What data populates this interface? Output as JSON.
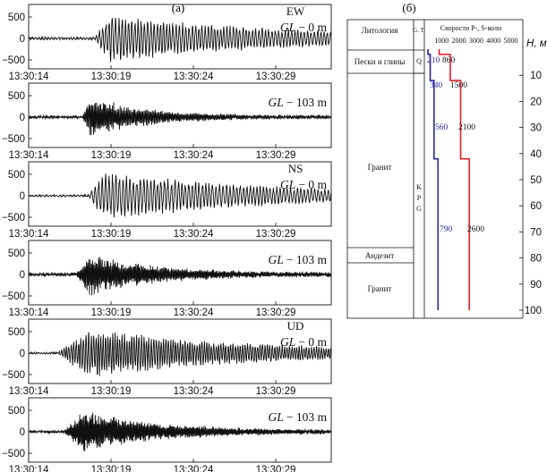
{
  "panels": {
    "left_label": "(a)",
    "right_label": "(б)"
  },
  "seismograms": {
    "y_ticks": [
      "500",
      "0",
      "−500"
    ],
    "time_ticks": [
      "13:30:14",
      "13:30:19",
      "13:30:24",
      "13:30:29"
    ],
    "components": [
      "EW",
      "",
      "NS",
      "",
      "UD",
      ""
    ],
    "levels": [
      "GL − 0 m",
      "GL − 103 m",
      "GL − 0 m",
      "GL − 103 m",
      "GL − 0 m",
      "GL − 103 m"
    ]
  },
  "profile": {
    "col_lithology": "Литология",
    "col_gt": "G. T.",
    "col_velocity": "Скорости P-, S-волн",
    "vel_ticks": [
      "1000",
      "2000",
      "3000",
      "4000",
      "5000"
    ],
    "depth_label": "H, м",
    "depth_ticks": [
      "10",
      "20",
      "30",
      "40",
      "50",
      "60",
      "70",
      "80",
      "90",
      "100"
    ],
    "layers": [
      "Пески и глины",
      "Гранит",
      "Андезит",
      "Гранит"
    ],
    "gt_labels": [
      "Q",
      "K P G"
    ],
    "s_wave_labels": [
      "210",
      "340",
      "560",
      "790"
    ],
    "p_wave_labels": [
      "860",
      "1500",
      "2100",
      "2600"
    ],
    "colors": {
      "p_wave": "#e0202a",
      "s_wave": "#2a2aa0"
    }
  },
  "chart_data": {
    "type": "line",
    "title": "Скорости P-, S-волн",
    "xlabel": "",
    "ylabel": "H, м",
    "xlim": [
      0,
      5500
    ],
    "ylim": [
      0,
      103
    ],
    "series": [
      {
        "name": "",
        "segments": [
          [
            0,
            2,
            860
          ],
          [
            2,
            12,
            1500
          ],
          [
            12,
            42,
            2100
          ],
          [
            42,
            100,
            2600
          ]
        ]
      },
      {
        "name": "",
        "segments": [
          [
            0,
            2,
            210
          ],
          [
            2,
            12,
            340
          ],
          [
            12,
            42,
            560
          ],
          [
            42,
            100,
            790
          ]
        ]
      }
    ]
  }
}
